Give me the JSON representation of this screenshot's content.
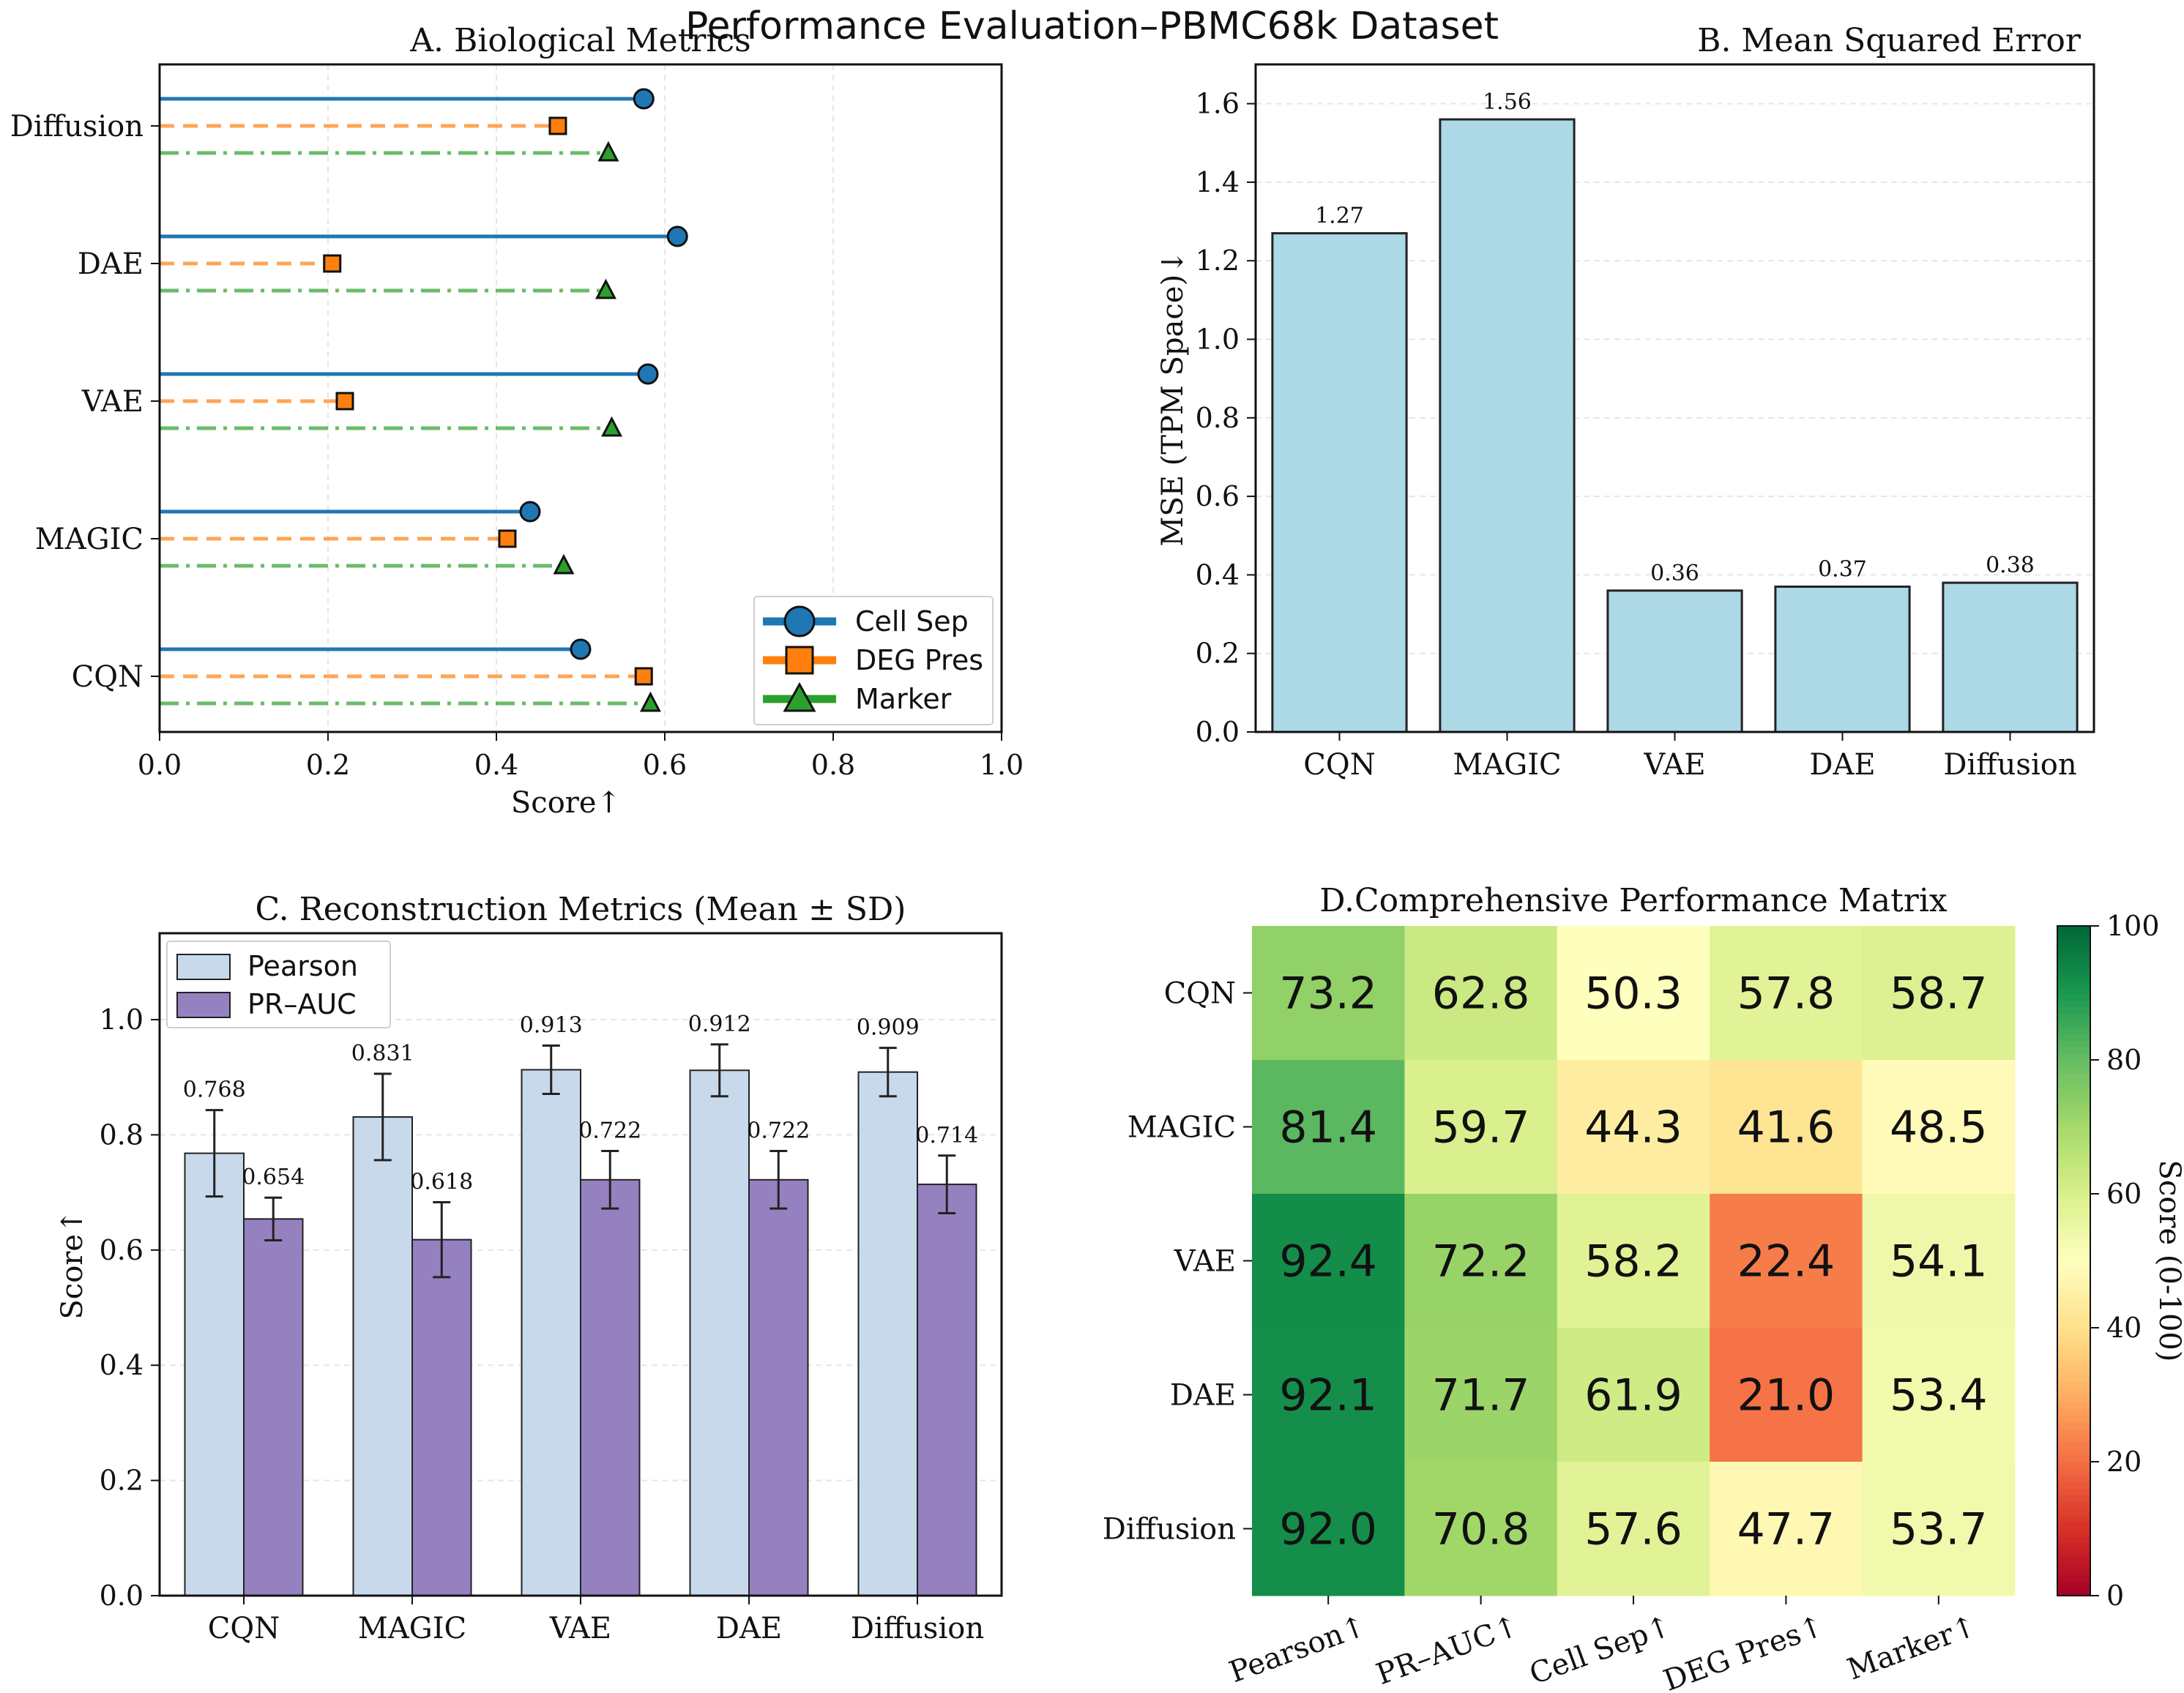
{
  "suptitle": "Performance Evaluation–PBMC68k Dataset",
  "chart_data": [
    {
      "id": "A",
      "type": "lollipop",
      "title": "A. Biological Metrics",
      "xlabel": "Score↑",
      "ylabel": "",
      "xlim": [
        0.0,
        1.0
      ],
      "xticks": [
        "0.0",
        "0.2",
        "0.4",
        "0.6",
        "0.8",
        "1.0"
      ],
      "categories": [
        "Diffusion",
        "DAE",
        "VAE",
        "MAGIC",
        "CQN"
      ],
      "series": [
        {
          "name": "Cell Sep",
          "color": "#1f77b4",
          "values": [
            0.575,
            0.615,
            0.58,
            0.44,
            0.5
          ]
        },
        {
          "name": "DEG Pres",
          "color": "#ff7f0e",
          "values": [
            0.473,
            0.205,
            0.22,
            0.413,
            0.575
          ]
        },
        {
          "name": "Marker",
          "color": "#2ca02c",
          "values": [
            0.533,
            0.53,
            0.537,
            0.48,
            0.583
          ]
        }
      ],
      "legend_position": "lower-right",
      "grid": true
    },
    {
      "id": "B",
      "type": "bar",
      "title": "B. Mean Squared Error",
      "ylabel": "MSE (TPM Space)↓",
      "xlabel": "",
      "ylim": [
        0.0,
        1.7
      ],
      "yticks": [
        "0.0",
        "0.2",
        "0.4",
        "0.6",
        "0.8",
        "1.0",
        "1.2",
        "1.4",
        "1.6"
      ],
      "categories": [
        "CQN",
        "MAGIC",
        "VAE",
        "DAE",
        "Diffusion"
      ],
      "values": [
        1.27,
        1.56,
        0.36,
        0.37,
        0.38
      ],
      "value_labels": [
        "1.27",
        "1.56",
        "0.36",
        "0.37",
        "0.38"
      ],
      "color": "#add8e6",
      "grid": true
    },
    {
      "id": "C",
      "type": "bar",
      "title": "C. Reconstruction Metrics (Mean ± SD)",
      "ylabel": "Score↑",
      "xlabel": "",
      "ylim": [
        0.0,
        1.15
      ],
      "yticks": [
        "0.0",
        "0.2",
        "0.4",
        "0.6",
        "0.8",
        "1.0"
      ],
      "categories": [
        "CQN",
        "MAGIC",
        "VAE",
        "DAE",
        "Diffusion"
      ],
      "series": [
        {
          "name": "Pearson",
          "color": "#c9d9ec",
          "values": [
            0.768,
            0.831,
            0.913,
            0.912,
            0.909
          ],
          "errors": [
            0.075,
            0.075,
            0.042,
            0.045,
            0.042
          ],
          "value_labels": [
            "0.768",
            "0.831",
            "0.913",
            "0.912",
            "0.909"
          ]
        },
        {
          "name": "PR–AUC",
          "color": "#9581bf",
          "values": [
            0.654,
            0.618,
            0.722,
            0.722,
            0.714
          ],
          "errors": [
            0.037,
            0.065,
            0.05,
            0.05,
            0.05
          ],
          "value_labels": [
            "0.654",
            "0.618",
            "0.722",
            "0.722",
            "0.714"
          ]
        }
      ],
      "legend_position": "top-left",
      "grid": true
    },
    {
      "id": "D",
      "type": "heatmap",
      "title": "D.Comprehensive Performance Matrix",
      "rows": [
        "CQN",
        "MAGIC",
        "VAE",
        "DAE",
        "Diffusion"
      ],
      "cols": [
        "Pearson↑",
        "PR–AUC↑",
        "Cell Sep↑",
        "DEG Pres↑",
        "Marker↑"
      ],
      "values": [
        [
          73.2,
          62.8,
          50.3,
          57.8,
          58.7
        ],
        [
          81.4,
          59.7,
          44.3,
          41.6,
          48.5
        ],
        [
          92.4,
          72.2,
          58.2,
          22.4,
          54.1
        ],
        [
          92.1,
          71.7,
          61.9,
          21.0,
          53.4
        ],
        [
          92.0,
          70.8,
          57.6,
          47.7,
          53.7
        ]
      ],
      "value_labels": [
        [
          "73.2",
          "62.8",
          "50.3",
          "57.8",
          "58.7"
        ],
        [
          "81.4",
          "59.7",
          "44.3",
          "41.6",
          "48.5"
        ],
        [
          "92.4",
          "72.2",
          "58.2",
          "22.4",
          "54.1"
        ],
        [
          "92.1",
          "71.7",
          "61.9",
          "21.0",
          "53.4"
        ],
        [
          "92.0",
          "70.8",
          "57.6",
          "47.7",
          "53.7"
        ]
      ],
      "vmin": 0,
      "vmax": 100,
      "colormap": "RdYlGn",
      "colorbar_label": "Score (0-100)",
      "colorbar_ticks": [
        "0",
        "20",
        "40",
        "60",
        "80",
        "100"
      ]
    }
  ]
}
